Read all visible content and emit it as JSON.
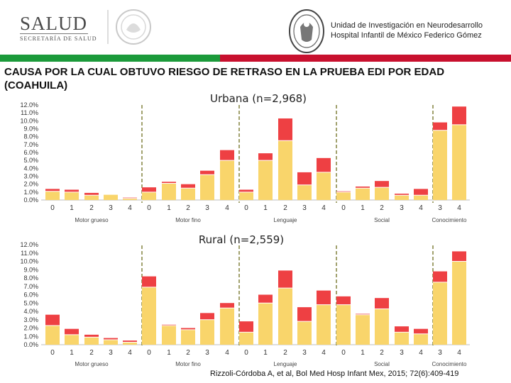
{
  "header": {
    "logo_left_text": "SALUD",
    "logo_left_sub": "SECRETARÍA DE SALUD",
    "institution_line1": "Unidad de Investigación en Neurodesarrollo",
    "institution_line2": "Hospital Infantil de México Federico Gómez"
  },
  "title": "CAUSA POR LA CUAL OBTUVO RIESGO DE RETRASO EN LA PRUEBA EDI POR EDAD (COAHUILA)",
  "citation": "Rizzoli-Córdoba A, et al, Bol Med Hosp Infant Mex, 2015; 72(6):409-419",
  "colors": {
    "yellow": "#f9d56b",
    "red": "#ee4043",
    "divider": "#8a8a4a",
    "green_band": "#1b9a3a",
    "red_band": "#c8102e"
  },
  "chart_data": [
    {
      "type": "bar",
      "stacked": true,
      "title": "Urbana (n=2,968)",
      "yticks": [
        "12.0%",
        "11.0%",
        "10.0%",
        "9.0%",
        "8.0%",
        "7.0%",
        "6.0%",
        "5.0%",
        "4.0%",
        "3.0%",
        "2.0%",
        "1.0%",
        "0.0%"
      ],
      "ylim": [
        0,
        12
      ],
      "groups": [
        {
          "label": "Motor grueso",
          "ticks": [
            "0",
            "1",
            "2",
            "3",
            "4"
          ],
          "base": [
            1.1,
            1.0,
            0.6,
            0.7,
            0.2
          ],
          "top": [
            0.3,
            0.3,
            0.3,
            0.0,
            0.1
          ]
        },
        {
          "label": "Motor fino",
          "ticks": [
            "0",
            "1",
            "2",
            "3",
            "4"
          ],
          "base": [
            1.0,
            2.1,
            1.5,
            3.2,
            5.0
          ],
          "top": [
            0.6,
            0.2,
            0.5,
            0.5,
            1.3
          ]
        },
        {
          "label": "Lenguaje",
          "ticks": [
            "0",
            "1",
            "2",
            "3",
            "4"
          ],
          "base": [
            1.0,
            5.0,
            7.5,
            1.9,
            3.5
          ],
          "top": [
            0.3,
            0.9,
            2.8,
            1.6,
            1.8
          ]
        },
        {
          "label": "Social",
          "ticks": [
            "0",
            "1",
            "2",
            "3",
            "4"
          ],
          "base": [
            1.0,
            1.5,
            1.6,
            0.6,
            0.6
          ],
          "top": [
            0.1,
            0.2,
            0.8,
            0.2,
            0.8
          ]
        },
        {
          "label": "Conocimiento",
          "ticks": [
            "3",
            "4"
          ],
          "base": [
            8.8,
            9.5
          ],
          "top": [
            1.0,
            2.3
          ]
        }
      ]
    },
    {
      "type": "bar",
      "stacked": true,
      "title": "Rural (n=2,559)",
      "yticks": [
        "12.0%",
        "11.0%",
        "10.0%",
        "9.0%",
        "8.0%",
        "7.0%",
        "6.0%",
        "5.0%",
        "4.0%",
        "3.0%",
        "2.0%",
        "1.0%",
        "0.0%"
      ],
      "ylim": [
        0,
        12
      ],
      "groups": [
        {
          "label": "Motor grueso",
          "ticks": [
            "0",
            "1",
            "2",
            "3",
            "4"
          ],
          "base": [
            2.3,
            1.2,
            0.9,
            0.6,
            0.3
          ],
          "top": [
            1.3,
            0.7,
            0.3,
            0.2,
            0.2
          ]
        },
        {
          "label": "Motor fino",
          "ticks": [
            "0",
            "1",
            "2",
            "3",
            "4"
          ],
          "base": [
            6.9,
            2.3,
            1.8,
            3.0,
            4.4
          ],
          "top": [
            1.3,
            0.1,
            0.2,
            0.8,
            0.6
          ]
        },
        {
          "label": "Lenguaje",
          "ticks": [
            "0",
            "1",
            "2",
            "3",
            "4"
          ],
          "base": [
            1.5,
            5.0,
            6.8,
            2.8,
            4.8
          ],
          "top": [
            1.3,
            1.0,
            2.1,
            1.7,
            1.7
          ]
        },
        {
          "label": "Social",
          "ticks": [
            "0",
            "1",
            "2",
            "3",
            "4"
          ],
          "base": [
            4.8,
            3.6,
            4.3,
            1.5,
            1.3
          ],
          "top": [
            1.0,
            0.1,
            1.3,
            0.7,
            0.6
          ]
        },
        {
          "label": "Conocimiento",
          "ticks": [
            "3",
            "4"
          ],
          "base": [
            7.5,
            10.0
          ],
          "top": [
            1.3,
            1.2
          ]
        }
      ]
    }
  ]
}
